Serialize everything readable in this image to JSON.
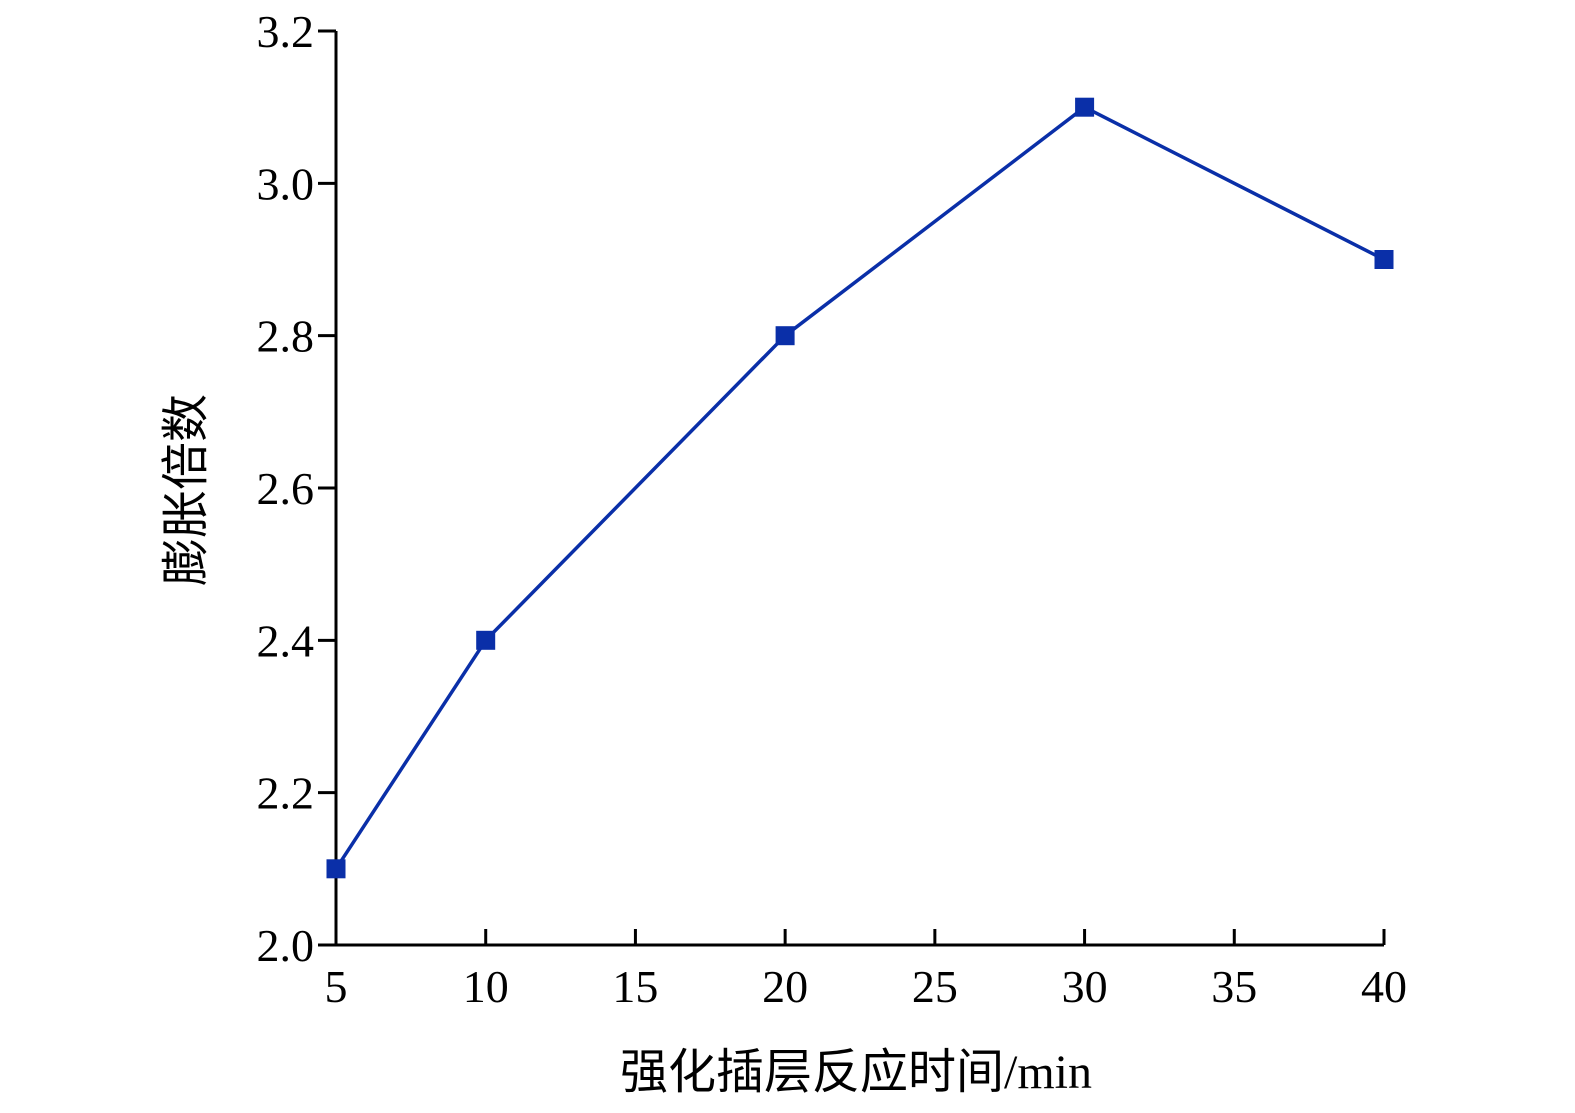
{
  "chart_data": {
    "type": "line",
    "title": "",
    "xlabel": "强化插层反应时间/min",
    "ylabel": "膨胀倍数",
    "xlim": [
      5,
      40
    ],
    "ylim": [
      2.0,
      3.2
    ],
    "x_ticks": [
      5,
      10,
      15,
      20,
      25,
      30,
      35,
      40
    ],
    "x_tick_labels": [
      "5",
      "10",
      "15",
      "20",
      "25",
      "30",
      "35",
      "40"
    ],
    "y_ticks": [
      2.0,
      2.2,
      2.4,
      2.6,
      2.8,
      3.0,
      3.2
    ],
    "y_tick_labels": [
      "2.0",
      "2.2",
      "2.4",
      "2.6",
      "2.8",
      "3.0",
      "3.2"
    ],
    "grid": false,
    "legend": "none",
    "series": [
      {
        "x": [
          5,
          10,
          20,
          30,
          40
        ],
        "y": [
          2.1,
          2.4,
          2.8,
          3.1,
          2.9
        ],
        "color": "#0a2fa8",
        "marker": "square"
      }
    ]
  }
}
